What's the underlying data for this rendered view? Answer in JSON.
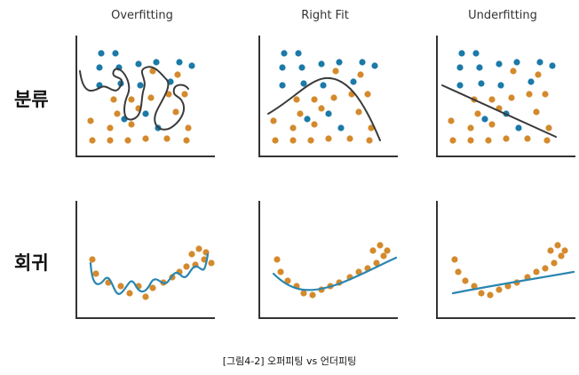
{
  "columns": {
    "overfitting": "Overfitting",
    "right_fit": "Right Fit",
    "underfitting": "Underfitting"
  },
  "rows": {
    "classification": "분류",
    "regression": "회귀"
  },
  "caption": "[그림4-2] 오퍼피팅 vs 언더피팅",
  "colors": {
    "blue_point": "#1a7aa8",
    "orange_point": "#d48a2c",
    "boundary": "#3a3a3a",
    "regression_line": "#2a86b0",
    "axis": "#333333"
  }
}
